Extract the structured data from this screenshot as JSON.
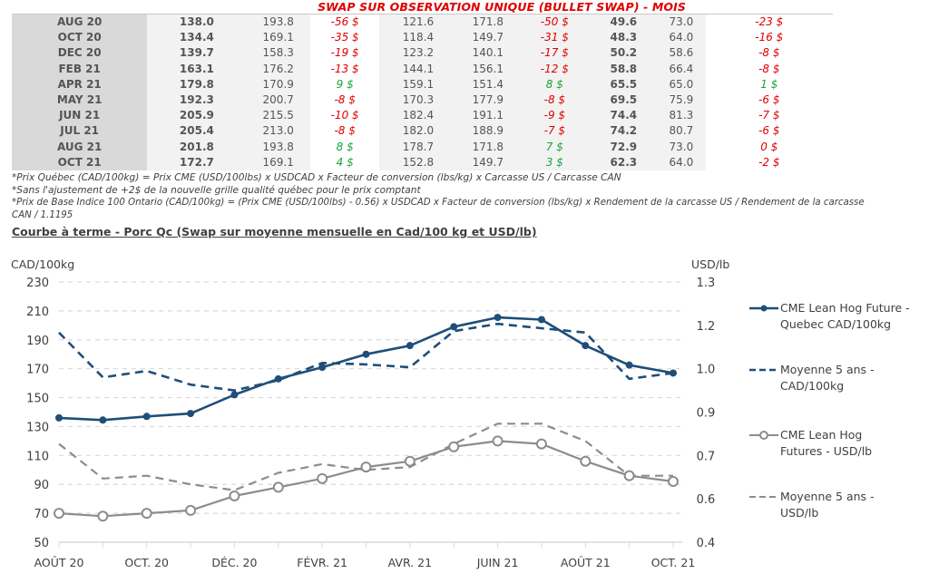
{
  "title": "SWAP SUR OBSERVATION UNIQUE (BULLET SWAP) - MOIS",
  "table": {
    "rows": [
      {
        "month": "AUG 20",
        "qc": "138.0",
        "qc_avg": "193.8",
        "qc_diff": "-56 $",
        "qc_sign": "neg",
        "ont": "121.6",
        "ont_avg": "171.8",
        "ont_diff": "-50 $",
        "ont_sign": "neg",
        "usd": "49.6",
        "usd_avg": "73.0",
        "usd_diff": "-23 $",
        "usd_sign": "neg"
      },
      {
        "month": "OCT 20",
        "qc": "134.4",
        "qc_avg": "169.1",
        "qc_diff": "-35 $",
        "qc_sign": "neg",
        "ont": "118.4",
        "ont_avg": "149.7",
        "ont_diff": "-31 $",
        "ont_sign": "neg",
        "usd": "48.3",
        "usd_avg": "64.0",
        "usd_diff": "-16 $",
        "usd_sign": "neg"
      },
      {
        "month": "DEC 20",
        "qc": "139.7",
        "qc_avg": "158.3",
        "qc_diff": "-19 $",
        "qc_sign": "neg",
        "ont": "123.2",
        "ont_avg": "140.1",
        "ont_diff": "-17 $",
        "ont_sign": "neg",
        "usd": "50.2",
        "usd_avg": "58.6",
        "usd_diff": "-8 $",
        "usd_sign": "neg"
      },
      {
        "month": "FEB 21",
        "qc": "163.1",
        "qc_avg": "176.2",
        "qc_diff": "-13 $",
        "qc_sign": "neg",
        "ont": "144.1",
        "ont_avg": "156.1",
        "ont_diff": "-12 $",
        "ont_sign": "neg",
        "usd": "58.8",
        "usd_avg": "66.4",
        "usd_diff": "-8 $",
        "usd_sign": "neg"
      },
      {
        "month": "APR 21",
        "qc": "179.8",
        "qc_avg": "170.9",
        "qc_diff": "9 $",
        "qc_sign": "pos",
        "ont": "159.1",
        "ont_avg": "151.4",
        "ont_diff": "8 $",
        "ont_sign": "pos",
        "usd": "65.5",
        "usd_avg": "65.0",
        "usd_diff": "1 $",
        "usd_sign": "pos"
      },
      {
        "month": "MAY 21",
        "qc": "192.3",
        "qc_avg": "200.7",
        "qc_diff": "-8 $",
        "qc_sign": "neg",
        "ont": "170.3",
        "ont_avg": "177.9",
        "ont_diff": "-8 $",
        "ont_sign": "neg",
        "usd": "69.5",
        "usd_avg": "75.9",
        "usd_diff": "-6 $",
        "usd_sign": "neg"
      },
      {
        "month": "JUN 21",
        "qc": "205.9",
        "qc_avg": "215.5",
        "qc_diff": "-10 $",
        "qc_sign": "neg",
        "ont": "182.4",
        "ont_avg": "191.1",
        "ont_diff": "-9 $",
        "ont_sign": "neg",
        "usd": "74.4",
        "usd_avg": "81.3",
        "usd_diff": "-7 $",
        "usd_sign": "neg"
      },
      {
        "month": "JUL 21",
        "qc": "205.4",
        "qc_avg": "213.0",
        "qc_diff": "-8 $",
        "qc_sign": "neg",
        "ont": "182.0",
        "ont_avg": "188.9",
        "ont_diff": "-7 $",
        "ont_sign": "neg",
        "usd": "74.2",
        "usd_avg": "80.7",
        "usd_diff": "-6 $",
        "usd_sign": "neg"
      },
      {
        "month": "AUG 21",
        "qc": "201.8",
        "qc_avg": "193.8",
        "qc_diff": "8 $",
        "qc_sign": "pos",
        "ont": "178.7",
        "ont_avg": "171.8",
        "ont_diff": "7 $",
        "ont_sign": "pos",
        "usd": "72.9",
        "usd_avg": "73.0",
        "usd_diff": "0 $",
        "usd_sign": "neg"
      },
      {
        "month": "OCT 21",
        "qc": "172.7",
        "qc_avg": "169.1",
        "qc_diff": "4 $",
        "qc_sign": "pos",
        "ont": "152.8",
        "ont_avg": "149.7",
        "ont_diff": "3 $",
        "ont_sign": "pos",
        "usd": "62.3",
        "usd_avg": "64.0",
        "usd_diff": "-2 $",
        "usd_sign": "neg"
      }
    ]
  },
  "notes": [
    "*Prix Québec (CAD/100kg) = Prix CME (USD/100lbs) x USDCAD x Facteur de conversion (lbs/kg) x Carcasse US / Carcasse CAN",
    "*Sans l'ajustement de +2$ de la nouvelle grille qualité québec pour le prix comptant",
    "*Prix de Base Indice 100 Ontario (CAD/100kg) = (Prix CME (USD/100lbs) - 0.56) x USDCAD x Facteur de conversion (lbs/kg) x Rendement de la carcasse US / Rendement de la carcasse",
    "CAN / 1.1195"
  ],
  "chart_subtitle": "Courbe à terme - Porc Qc (Swap sur moyenne mensuelle en Cad/100 kg et USD/lb)",
  "colors": {
    "blue": "#1f4e79",
    "gray": "#8c8c8c",
    "neg": "#e00000",
    "pos": "#1aa33a"
  },
  "chart_data": {
    "type": "line",
    "title": "Courbe à terme - Porc Qc (Swap sur moyenne mensuelle en Cad/100 kg et USD/lb)",
    "ylabel_left": "CAD/100kg",
    "ylabel_right": "USD/lb",
    "ylim_left": [
      50,
      230
    ],
    "yticks_left": [
      "230",
      "210",
      "190",
      "170",
      "150",
      "130",
      "110",
      "90",
      "70",
      "50"
    ],
    "ylim_right": [
      0.4,
      1.3
    ],
    "yticks_right": [
      "1.3",
      "1.2",
      "1.0",
      "0.9",
      "0.7",
      "0.6",
      "0.4"
    ],
    "x": [
      "Aug 20",
      "Sep 20",
      "Oct 20",
      "Nov 20",
      "Dec 20",
      "Jan 21",
      "Feb 21",
      "Mar 21",
      "Apr 21",
      "May 21",
      "Jun 21",
      "Jul 21",
      "Aug 21",
      "Sep 21",
      "Oct 21"
    ],
    "xtick_labels": [
      "AOÛT 20",
      "OCT. 20",
      "DÉC. 20",
      "FÉVR. 21",
      "AVR. 21",
      "JUIN 21",
      "AOÛT 21",
      "OCT. 21"
    ],
    "grid": true,
    "legend_position": "right",
    "series": [
      {
        "name": "CME Lean Hog Future - Quebec CAD/100kg",
        "axis": "left",
        "style": "solid-marker-diamond",
        "color": "#1f4e79",
        "values": [
          136,
          134.5,
          137,
          139,
          152,
          163,
          171,
          180,
          186,
          199,
          205.5,
          204,
          186,
          172.5,
          167
        ]
      },
      {
        "name": "Moyenne 5 ans - CAD/100kg",
        "axis": "left",
        "style": "dashed",
        "color": "#1f4e79",
        "values": [
          195,
          164,
          168.5,
          159,
          155,
          162,
          174,
          173,
          171,
          196,
          201,
          198,
          195,
          163,
          167
        ]
      },
      {
        "name": "CME Lean Hog Futures - USD/lb",
        "axis": "right",
        "style": "solid-marker-circle",
        "color": "#8c8c8c",
        "values": [
          0.5,
          0.49,
          0.5,
          0.51,
          0.56,
          0.59,
          0.62,
          0.66,
          0.68,
          0.73,
          0.75,
          0.74,
          0.68,
          0.63,
          0.61
        ]
      },
      {
        "name": "Moyenne 5 ans - USD/lb",
        "axis": "right",
        "style": "dashed",
        "color": "#8c8c8c",
        "values": [
          0.74,
          0.62,
          0.63,
          0.6,
          0.58,
          0.64,
          0.67,
          0.65,
          0.66,
          0.74,
          0.81,
          0.81,
          0.75,
          0.63,
          0.63
        ]
      }
    ]
  }
}
